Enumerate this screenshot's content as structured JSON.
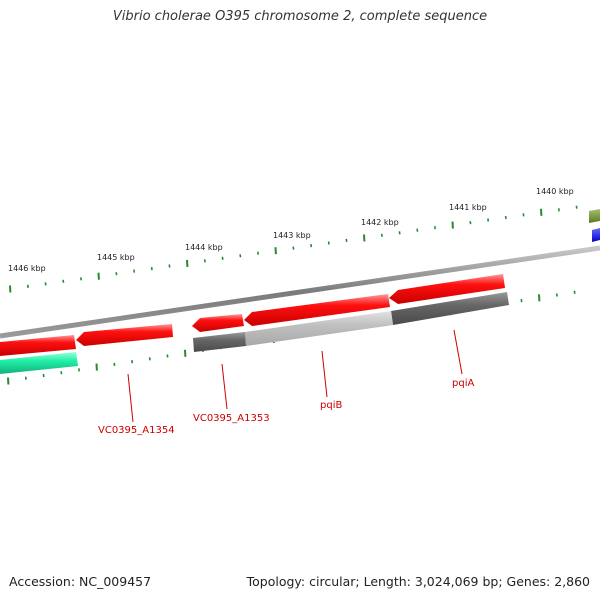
{
  "title": "Vibrio cholerae O395 chromosome 2, complete sequence",
  "ruler": {
    "labels": [
      "1440 kbp",
      "1441 kbp",
      "1442 kbp",
      "1443 kbp",
      "1444 kbp",
      "1445 kbp",
      "1446 kbp"
    ]
  },
  "gene_labels": [
    {
      "name": "pqiA",
      "color": "#cc0000"
    },
    {
      "name": "pqiB",
      "color": "#cc0000"
    },
    {
      "name": "VC0395_A1353",
      "color": "#cc0000"
    },
    {
      "name": "VC0395_A1354",
      "color": "#cc0000"
    }
  ],
  "colors": {
    "gene_forward": "#e00000",
    "backbone": "#888888",
    "track_dark": "#666666",
    "track_light": "#bbbbbb",
    "track_teal": "#20e8a0",
    "track_olive": "#6a8a2a",
    "track_blue": "#1010e0",
    "tick": "#2a8a2a"
  },
  "footer": {
    "accession": "Accession: NC_009457",
    "summary": "Topology: circular; Length: 3,024,069 bp; Genes: 2,860"
  }
}
